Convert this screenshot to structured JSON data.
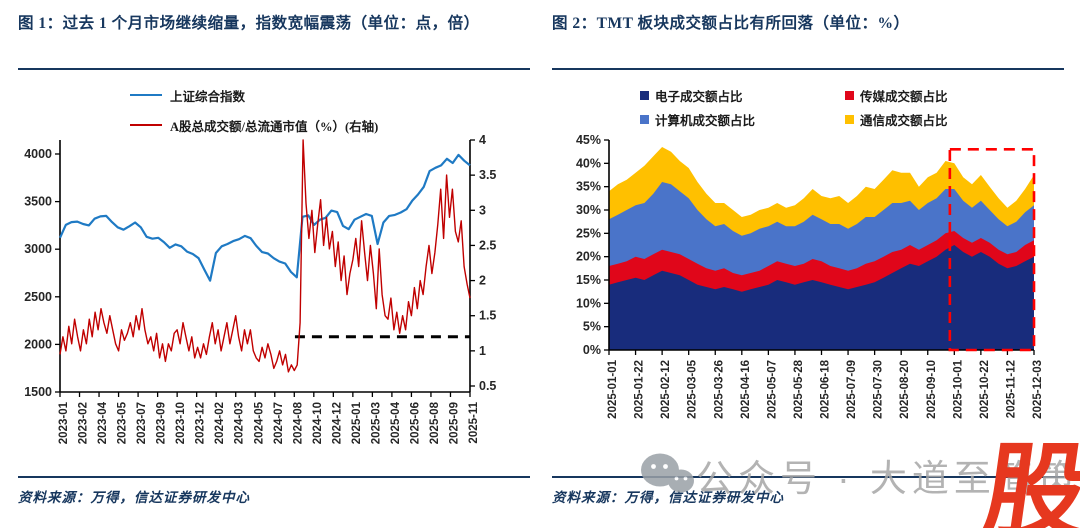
{
  "fig1": {
    "title": "图 1：过去 1 个月市场继续缩量，指数宽幅震荡（单位：点，倍）",
    "source": "资料来源：万得，信达证券研发中心"
  },
  "fig2": {
    "title": "图 2：TMT 板块成交额占比有所回落（单位：%）",
    "source": "资料来源：万得，信达证券研发中心"
  },
  "watermark": {
    "wechat_icon": "wechat-icon",
    "text": "公众号 · 大道至简策略",
    "logo_char": "股",
    "logo_color": "#E6381F",
    "text_color": "#a6a6a6"
  },
  "chart_data": [
    {
      "type": "line",
      "title": "过去 1 个月市场继续缩量，指数宽幅震荡",
      "units": "点，倍",
      "legend_position": "top-left",
      "grid": false,
      "left_axis": {
        "ticks": [
          4000,
          3500,
          3000,
          2500,
          2000,
          1500
        ],
        "range": [
          1500,
          4147
        ]
      },
      "right_axis": {
        "ticks": [
          4,
          3.5,
          3,
          2.5,
          2,
          1.5,
          1,
          0.5
        ],
        "range": [
          0.5,
          4.0
        ]
      },
      "x_labels": [
        "2023-01",
        "2023-02",
        "2023-04",
        "2023-05",
        "2023-07",
        "2023-09",
        "2023-10",
        "2023-12",
        "2024-02",
        "2024-03",
        "2024-05",
        "2024-07",
        "2024-08",
        "2024-10",
        "2024-12",
        "2025-01",
        "2025-03",
        "2025-04",
        "2025-06",
        "2025-08",
        "2025-09",
        "2025-11"
      ],
      "series": [
        {
          "name": "上证综合指数",
          "axis": "left",
          "color": "#1F7AC4",
          "values": [
            3120,
            3255,
            3285,
            3290,
            3265,
            3250,
            3320,
            3345,
            3350,
            3285,
            3230,
            3205,
            3240,
            3280,
            3230,
            3130,
            3110,
            3120,
            3075,
            3015,
            3050,
            3030,
            2975,
            2950,
            2905,
            2785,
            2670,
            2960,
            3030,
            3055,
            3085,
            3105,
            3140,
            3115,
            3035,
            2970,
            2955,
            2905,
            2870,
            2850,
            2760,
            2705,
            3340,
            3355,
            3255,
            3310,
            3330,
            3405,
            3390,
            3245,
            3210,
            3310,
            3340,
            3370,
            3350,
            3055,
            3280,
            3350,
            3360,
            3385,
            3420,
            3510,
            3575,
            3655,
            3820,
            3855,
            3880,
            3950,
            3905,
            3990,
            3930,
            3880
          ]
        },
        {
          "name": "A股总成交额/总流通市值（%）(右轴)",
          "axis": "right",
          "color": "#C00000",
          "values": [
            0.95,
            1.2,
            1.0,
            1.35,
            1.1,
            1.45,
            1.2,
            1.0,
            1.3,
            1.1,
            1.45,
            1.2,
            1.55,
            1.3,
            1.6,
            1.4,
            1.25,
            1.5,
            1.3,
            1.1,
            1.0,
            1.3,
            1.15,
            1.25,
            1.4,
            1.2,
            1.5,
            1.3,
            1.6,
            1.3,
            1.1,
            1.2,
            1.0,
            1.25,
            0.9,
            1.1,
            0.85,
            1.1,
            1.0,
            1.25,
            1.3,
            1.1,
            1.4,
            1.2,
            1.0,
            1.2,
            0.9,
            1.05,
            0.9,
            1.1,
            0.95,
            1.2,
            1.4,
            1.1,
            1.3,
            1.0,
            1.2,
            1.4,
            1.1,
            1.3,
            1.5,
            1.2,
            1.0,
            1.3,
            1.1,
            1.3,
            1.0,
            0.9,
            0.85,
            1.05,
            0.9,
            1.1,
            0.95,
            0.75,
            0.85,
            1.0,
            0.8,
            0.95,
            0.7,
            0.8,
            0.72,
            0.8,
            1.4,
            4.0,
            3.1,
            2.6,
            3.0,
            2.4,
            2.8,
            3.15,
            2.5,
            2.9,
            2.45,
            2.7,
            2.2,
            2.55,
            2.0,
            2.35,
            1.8,
            2.1,
            2.3,
            2.6,
            2.2,
            2.85,
            2.4,
            2.0,
            2.5,
            2.1,
            1.6,
            2.45,
            1.8,
            1.5,
            1.45,
            1.75,
            1.3,
            1.55,
            1.25,
            1.5,
            1.3,
            1.7,
            1.5,
            1.9,
            1.6,
            2.0,
            1.8,
            2.2,
            2.5,
            2.1,
            2.4,
            2.8,
            3.3,
            2.6,
            3.5,
            2.9,
            3.3,
            2.7,
            2.55,
            2.85,
            2.2,
            1.95,
            1.75
          ]
        }
      ],
      "dashed_reference": {
        "value": 1.2,
        "axis": "right",
        "from_frac": 0.573,
        "color": "#000000"
      }
    },
    {
      "type": "area",
      "title": "TMT 板块成交额占比",
      "units": "%",
      "stacked": true,
      "grid": false,
      "ylim": [
        0,
        45
      ],
      "y_ticks": [
        "45%",
        "40%",
        "35%",
        "30%",
        "25%",
        "20%",
        "15%",
        "10%",
        "5%",
        "0%"
      ],
      "x_labels": [
        "2025-01-01",
        "2025-01-22",
        "2025-02-12",
        "2025-03-05",
        "2025-03-26",
        "2025-04-16",
        "2025-05-07",
        "2025-05-28",
        "2025-06-18",
        "2025-07-09",
        "2025-07-30",
        "2025-08-20",
        "2025-09-10",
        "2025-10-01",
        "2025-10-22",
        "2025-11-12",
        "2025-12-03"
      ],
      "series": [
        {
          "name": "电子成交额占比",
          "color": "#182C7C",
          "values": [
            14,
            14.5,
            15,
            15.5,
            15,
            16,
            17,
            16.5,
            16,
            15,
            14,
            13.5,
            13,
            13.5,
            13,
            12.5,
            13,
            13.5,
            14,
            15,
            14.5,
            14,
            14.5,
            15,
            14.5,
            14,
            13.5,
            13,
            13.5,
            14,
            14.5,
            15.5,
            16.5,
            17.5,
            18.5,
            18,
            19,
            20,
            21.5,
            22.5,
            21,
            20,
            21,
            20,
            18.5,
            17.5,
            18,
            19,
            20
          ]
        },
        {
          "name": "传媒成交额占比",
          "color": "#E0061A",
          "values": [
            4,
            4,
            4,
            4.5,
            4.5,
            4.5,
            4.5,
            4.5,
            4.5,
            4.5,
            4.5,
            4,
            4,
            4,
            3.5,
            3.5,
            3.5,
            3.5,
            4,
            4,
            4,
            4,
            4,
            4.5,
            4.5,
            4,
            4,
            4,
            4,
            4.5,
            4.5,
            4.5,
            4.5,
            4,
            4,
            3.5,
            3.5,
            3.5,
            3.5,
            3,
            3,
            3,
            3,
            3,
            3,
            3,
            3,
            3.5,
            3.5
          ]
        },
        {
          "name": "计算机成交额占比",
          "color": "#4A74C9",
          "values": [
            10,
            10.5,
            11,
            11,
            12,
            13,
            14.5,
            14.5,
            13.5,
            13,
            11.5,
            10.5,
            9.5,
            9.5,
            9,
            8.5,
            8.5,
            9,
            8.5,
            8.5,
            8,
            8.5,
            9,
            9.5,
            9,
            9,
            9.5,
            9,
            9.5,
            10,
            9.5,
            10,
            10.5,
            10,
            9.5,
            8.5,
            9,
            9,
            9.5,
            9,
            8,
            7.5,
            8,
            7,
            6.5,
            6,
            6.5,
            7,
            7.5
          ]
        },
        {
          "name": "通信成交额占比",
          "color": "#FFC000",
          "values": [
            6,
            6.5,
            6.5,
            7,
            8,
            8,
            7.5,
            7,
            6.5,
            6.5,
            6,
            5.5,
            5,
            4.5,
            4.5,
            4,
            4,
            4,
            4,
            4,
            4,
            4.5,
            5,
            5.5,
            5,
            5.5,
            6,
            5.5,
            6,
            6.5,
            6,
            6.5,
            7,
            6.5,
            6,
            5,
            5.5,
            5.5,
            6,
            5.5,
            5,
            5,
            5.5,
            5,
            4.5,
            4,
            4.5,
            5,
            6.5
          ]
        }
      ],
      "highlight_box": {
        "x_start_frac": 0.802,
        "y_top_value": 43,
        "color": "#FF0000"
      }
    }
  ]
}
